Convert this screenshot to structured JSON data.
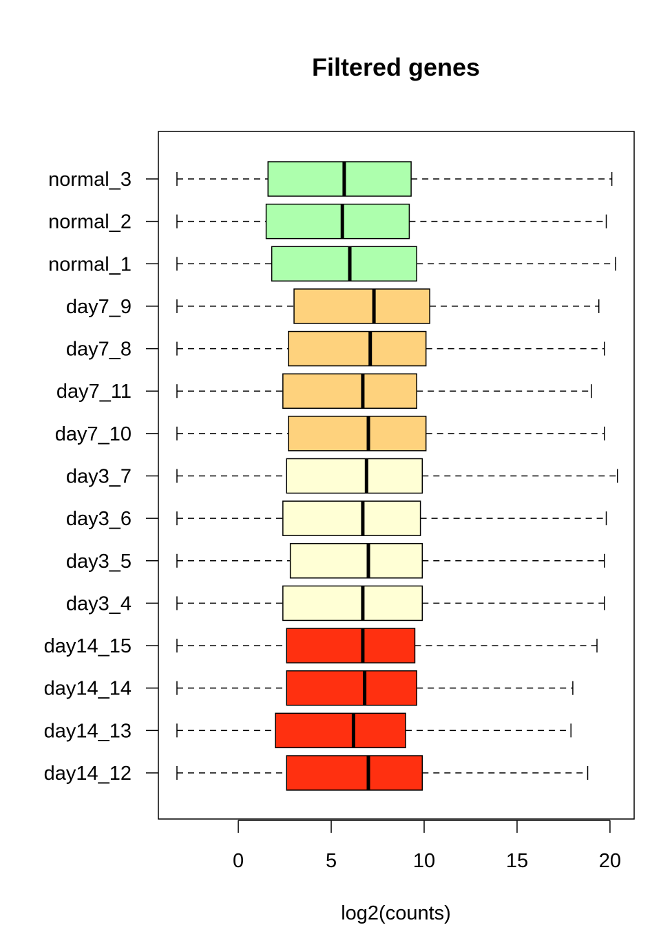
{
  "chart_data": {
    "type": "boxplot",
    "orientation": "horizontal",
    "title": "Filtered genes",
    "xlabel": "log2(counts)",
    "ylabel": "",
    "xlim": [
      -4.3,
      21.3
    ],
    "xticks": [
      0,
      5,
      10,
      15,
      20
    ],
    "grid": false,
    "legend": "none",
    "categories": [
      "day14_12",
      "day14_13",
      "day14_14",
      "day14_15",
      "day3_4",
      "day3_5",
      "day3_6",
      "day3_7",
      "day7_10",
      "day7_11",
      "day7_8",
      "day7_9",
      "normal_1",
      "normal_2",
      "normal_3"
    ],
    "series": [
      {
        "label": "day14_12",
        "min": -3.3,
        "q1": 2.6,
        "median": 7.0,
        "q3": 9.9,
        "max": 18.8,
        "color": "#ff3010"
      },
      {
        "label": "day14_13",
        "min": -3.3,
        "q1": 2.0,
        "median": 6.2,
        "q3": 9.0,
        "max": 17.9,
        "color": "#ff3010"
      },
      {
        "label": "day14_14",
        "min": -3.3,
        "q1": 2.6,
        "median": 6.8,
        "q3": 9.6,
        "max": 18.0,
        "color": "#ff3010"
      },
      {
        "label": "day14_15",
        "min": -3.3,
        "q1": 2.6,
        "median": 6.7,
        "q3": 9.5,
        "max": 19.3,
        "color": "#ff3010"
      },
      {
        "label": "day3_4",
        "min": -3.3,
        "q1": 2.4,
        "median": 6.7,
        "q3": 9.9,
        "max": 19.7,
        "color": "#ffffd5"
      },
      {
        "label": "day3_5",
        "min": -3.3,
        "q1": 2.8,
        "median": 7.0,
        "q3": 9.9,
        "max": 19.7,
        "color": "#ffffd5"
      },
      {
        "label": "day3_6",
        "min": -3.3,
        "q1": 2.4,
        "median": 6.7,
        "q3": 9.8,
        "max": 19.8,
        "color": "#ffffd5"
      },
      {
        "label": "day3_7",
        "min": -3.3,
        "q1": 2.6,
        "median": 6.9,
        "q3": 9.9,
        "max": 20.4,
        "color": "#ffffd5"
      },
      {
        "label": "day7_10",
        "min": -3.3,
        "q1": 2.7,
        "median": 7.0,
        "q3": 10.1,
        "max": 19.7,
        "color": "#fed27d"
      },
      {
        "label": "day7_11",
        "min": -3.3,
        "q1": 2.4,
        "median": 6.7,
        "q3": 9.6,
        "max": 19.0,
        "color": "#fed27d"
      },
      {
        "label": "day7_8",
        "min": -3.3,
        "q1": 2.7,
        "median": 7.1,
        "q3": 10.1,
        "max": 19.7,
        "color": "#fed27d"
      },
      {
        "label": "day7_9",
        "min": -3.3,
        "q1": 3.0,
        "median": 7.3,
        "q3": 10.3,
        "max": 19.4,
        "color": "#fed27d"
      },
      {
        "label": "normal_1",
        "min": -3.3,
        "q1": 1.8,
        "median": 6.0,
        "q3": 9.6,
        "max": 20.3,
        "color": "#adffad"
      },
      {
        "label": "normal_2",
        "min": -3.3,
        "q1": 1.5,
        "median": 5.6,
        "q3": 9.2,
        "max": 19.8,
        "color": "#adffad"
      },
      {
        "label": "normal_3",
        "min": -3.3,
        "q1": 1.6,
        "median": 5.7,
        "q3": 9.3,
        "max": 20.1,
        "color": "#adffad"
      }
    ]
  }
}
